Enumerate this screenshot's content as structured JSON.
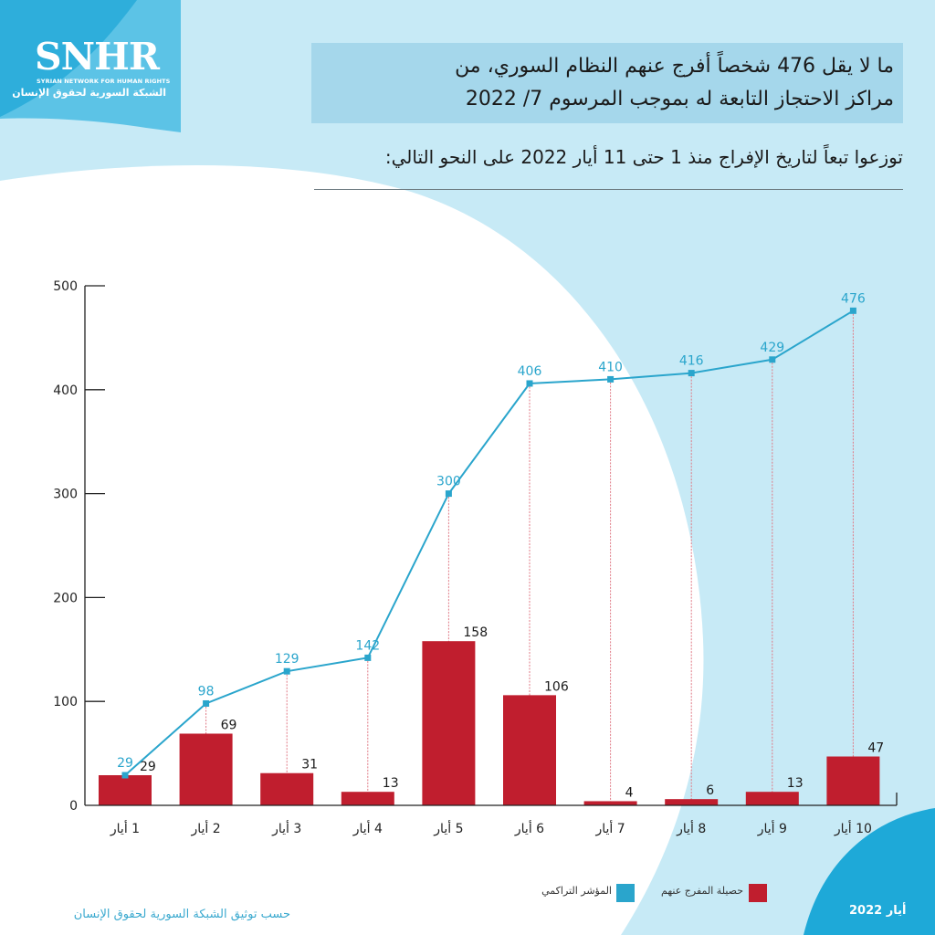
{
  "branding": {
    "logo_text": "SNHR",
    "org_name_en": "SYRIAN NETWORK FOR HUMAN RIGHTS",
    "org_name_ar": "الشبكة السورية لحقوق الإنسان"
  },
  "header": {
    "title_line1": "ما لا يقل 476 شخصاً أفرج عنهم النظام السوري، من",
    "title_line2": "مراكز الاحتجاز التابعة له بموجب المرسوم 7/ 2022",
    "subtitle": "توزعوا تبعاً لتاريخ الإفراج منذ 1 حتى 11 أيار 2022 على النحو التالي:"
  },
  "footer": {
    "source": "حسب توثيق الشبكة السورية لحقوق الإنسان",
    "date_stamp": "أيار 2022"
  },
  "colors": {
    "bar": "#c01e2e",
    "line": "#2aa5cc",
    "line_label": "#2aa5cc",
    "bar_label": "#1a1a1a",
    "axis": "#222222",
    "guide": "#e07a86",
    "bg_light": "#c7eaf6",
    "bg_white": "#ffffff",
    "bg_dark": "#1ea9d8"
  },
  "chart_data": {
    "type": "bar+line",
    "title": "",
    "xlabel": "",
    "ylabel": "",
    "ylim": [
      0,
      500
    ],
    "yticks": [
      0,
      100,
      200,
      300,
      400,
      500
    ],
    "ytick_labels": [
      "0",
      "100",
      "200",
      "300",
      "400",
      "500"
    ],
    "categories": [
      "1 أيار",
      "2 أيار",
      "3 أيار",
      "4 أيار",
      "5 أيار",
      "6 أيار",
      "7 أيار",
      "8 أيار",
      "9 أيار",
      "10 أيار"
    ],
    "series": [
      {
        "name": "حصيلة المفرج عنهم",
        "type": "bar",
        "color": "#c01e2e",
        "values": [
          29,
          69,
          31,
          13,
          158,
          106,
          4,
          6,
          13,
          47
        ]
      },
      {
        "name": "المؤشر التراكمي",
        "type": "line",
        "color": "#2aa5cc",
        "values": [
          29,
          98,
          129,
          142,
          300,
          406,
          410,
          416,
          429,
          476
        ]
      }
    ],
    "legend": {
      "position": "bottom",
      "entries": [
        "حصيلة المفرج عنهم",
        "المؤشر التراكمي"
      ]
    },
    "grid": false
  }
}
